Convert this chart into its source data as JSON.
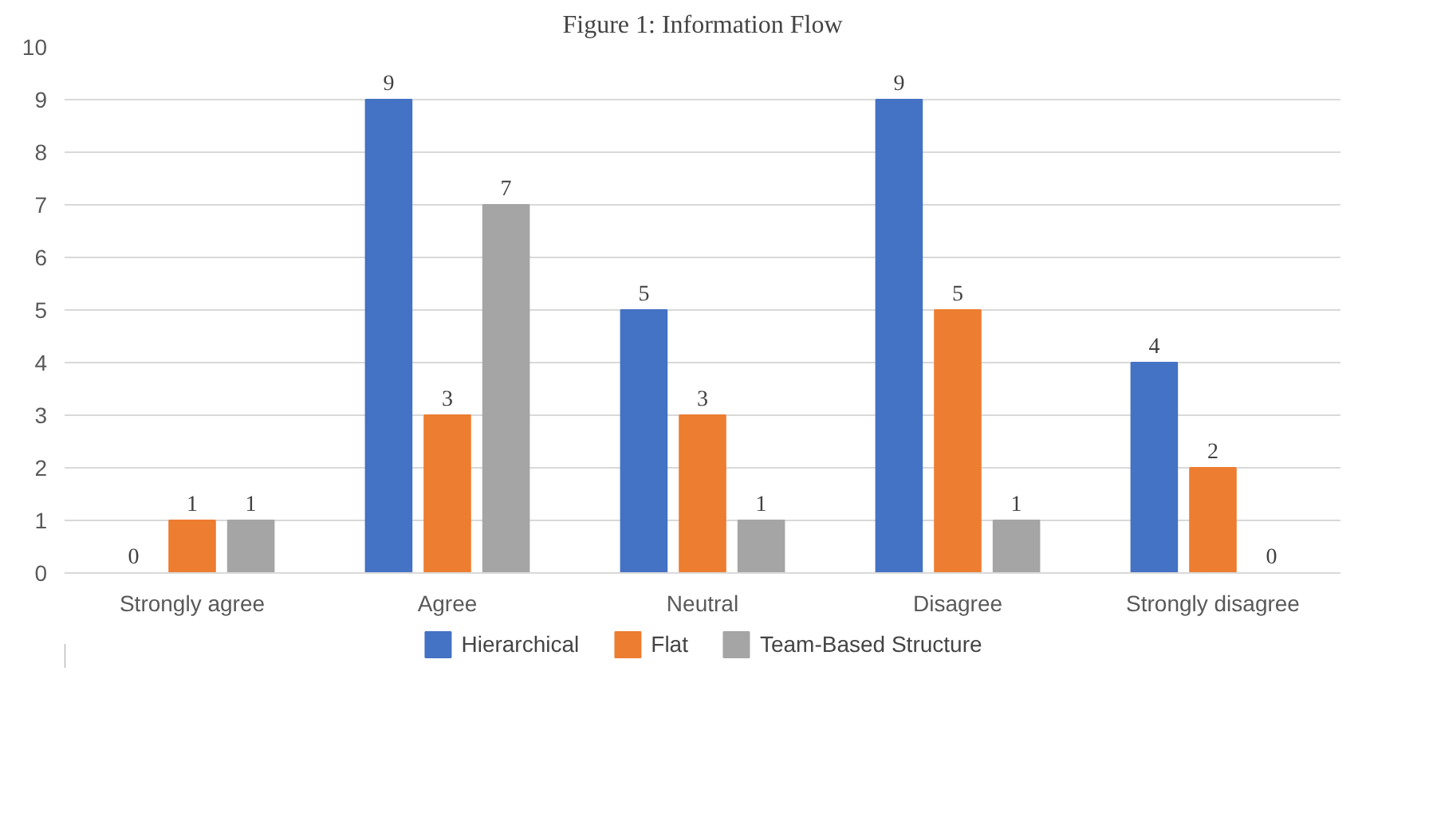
{
  "chart_data": {
    "type": "bar",
    "title": "Figure 1: Information Flow",
    "categories": [
      "Strongly agree",
      "Agree",
      "Neutral",
      "Disagree",
      "Strongly disagree"
    ],
    "series": [
      {
        "name": "Hierarchical",
        "color": "#4472c4",
        "values": [
          0,
          9,
          5,
          9,
          4
        ]
      },
      {
        "name": "Flat",
        "color": "#ed7d31",
        "values": [
          1,
          3,
          3,
          5,
          2
        ]
      },
      {
        "name": "Team-Based Structure",
        "color": "#a5a5a5",
        "values": [
          1,
          7,
          1,
          1,
          0
        ]
      }
    ],
    "ylim": [
      0,
      10
    ],
    "yticks": [
      0,
      1,
      2,
      3,
      4,
      5,
      6,
      7,
      8,
      9,
      10
    ],
    "grid": "y",
    "legend": "bottom",
    "data_labels": true
  }
}
